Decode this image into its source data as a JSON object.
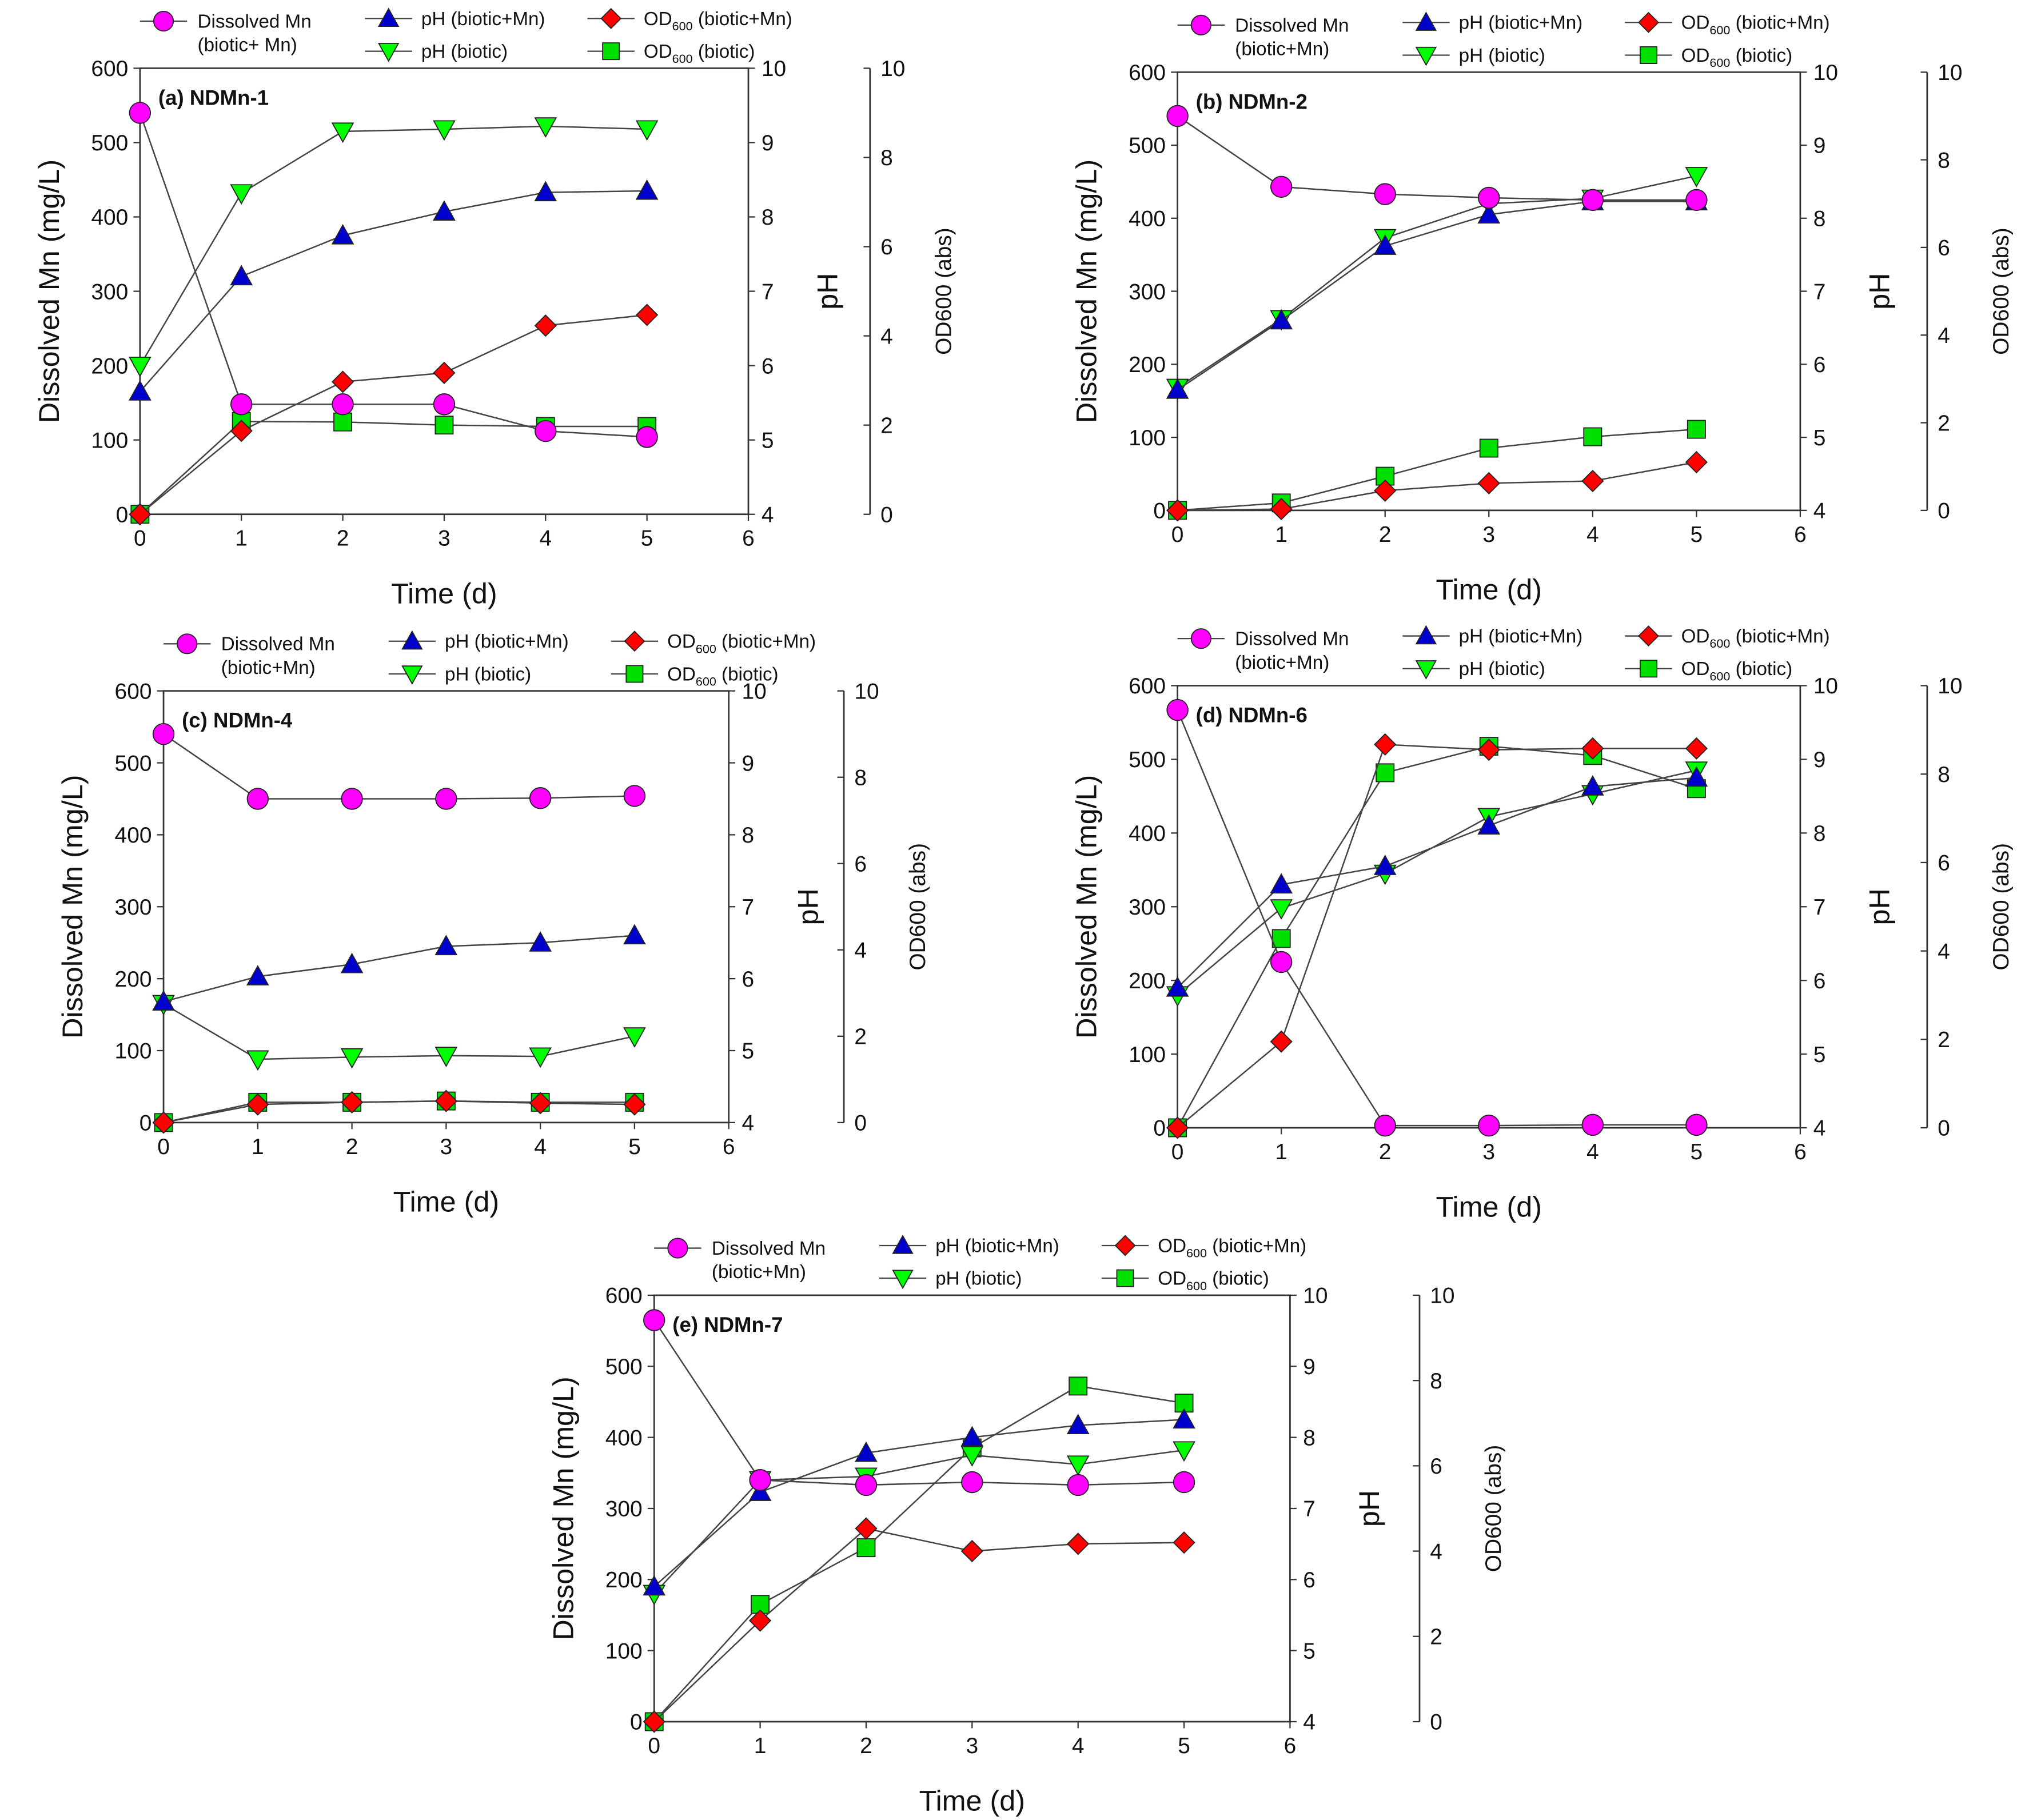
{
  "chart_data": {
    "type": "line",
    "shared": {
      "x": [
        0,
        1,
        2,
        3,
        4,
        5
      ],
      "xlim": [
        0,
        6
      ],
      "xticks": [
        0,
        1,
        2,
        3,
        4,
        5,
        6
      ],
      "xlabel": "Time (d)",
      "ylabel_left": "Dissolved Mn (mg/L)",
      "ylim_left": [
        0,
        600
      ],
      "yticks_left": [
        0,
        100,
        200,
        300,
        400,
        500,
        600
      ],
      "ylabel_right1": "pH",
      "ylim_right1": [
        4,
        10
      ],
      "yticks_right1": [
        4,
        5,
        6,
        7,
        8,
        9,
        10
      ],
      "ylabel_right2": "OD600 (abs)",
      "ylim_right2": [
        0,
        10
      ],
      "yticks_right2": [
        0,
        2,
        4,
        6,
        8,
        10
      ],
      "legend_placement": "top",
      "colors": {
        "mn": "#ff00ff",
        "ph_mn": "#0000cc",
        "ph": "#00ff00",
        "od_mn": "#ff0000",
        "od": "#00e000"
      }
    },
    "panels": [
      {
        "title": "(a) NDMn-1",
        "legend": {
          "mn_line1": "Dissolved Mn",
          "mn_line2": "(biotic+ Mn)",
          "ph_mn": "pH (biotic+Mn)",
          "ph": "pH (biotic)",
          "od_mn": "OD600 (biotic+Mn)",
          "od": "OD600 (biotic)"
        },
        "series": [
          {
            "key": "mn",
            "name": "Dissolved Mn (biotic+Mn)",
            "axis": "left",
            "values": [
              540,
              148,
              148,
              148,
              112,
              104
            ]
          },
          {
            "key": "ph_mn",
            "name": "pH (biotic+Mn)",
            "axis": "right1",
            "values": [
              5.65,
              7.2,
              7.75,
              8.07,
              8.33,
              8.35
            ]
          },
          {
            "key": "ph",
            "name": "pH (biotic)",
            "axis": "right1",
            "values": [
              6.0,
              8.32,
              9.15,
              9.18,
              9.22,
              9.18
            ]
          },
          {
            "key": "od_mn",
            "name": "OD600 (biotic+Mn)",
            "axis": "right2",
            "values": [
              0,
              1.87,
              2.97,
              3.17,
              4.23,
              4.47
            ]
          },
          {
            "key": "od",
            "name": "OD600 (biotic)",
            "axis": "right2",
            "values": [
              0,
              2.08,
              2.07,
              2.0,
              1.97,
              1.97
            ]
          }
        ]
      },
      {
        "title": "(b) NDMn-2",
        "legend": {
          "mn_line1": "Dissolved Mn",
          "mn_line2": "(biotic+Mn)",
          "ph_mn": "pH (biotic+Mn)",
          "ph": "pH (biotic)",
          "od_mn": "OD600 (biotic+Mn)",
          "od": "OD600 (biotic)"
        },
        "series": [
          {
            "key": "mn",
            "name": "Dissolved Mn (biotic+Mn)",
            "axis": "left",
            "values": [
              540,
              443,
              433,
              428,
              425,
              425
            ]
          },
          {
            "key": "ph_mn",
            "name": "pH (biotic+Mn)",
            "axis": "right1",
            "values": [
              5.65,
              6.6,
              7.62,
              8.05,
              8.23,
              8.23
            ]
          },
          {
            "key": "ph",
            "name": "pH (biotic)",
            "axis": "right1",
            "values": [
              5.68,
              6.62,
              7.73,
              8.2,
              8.27,
              8.58
            ]
          },
          {
            "key": "od_mn",
            "name": "OD600 (biotic+Mn)",
            "axis": "right2",
            "values": [
              0,
              0.03,
              0.45,
              0.62,
              0.67,
              1.1
            ]
          },
          {
            "key": "od",
            "name": "OD600 (biotic)",
            "axis": "right2",
            "values": [
              0,
              0.17,
              0.78,
              1.42,
              1.68,
              1.85
            ]
          }
        ]
      },
      {
        "title": "(c) NDMn-4",
        "legend": {
          "mn_line1": "Dissolved Mn",
          "mn_line2": "(biotic+Mn)",
          "ph_mn": "pH (biotic+Mn)",
          "ph": "pH (biotic)",
          "od_mn": "OD600 (biotic+Mn)",
          "od": "OD600 (biotic)"
        },
        "series": [
          {
            "key": "mn",
            "name": "Dissolved Mn (biotic+Mn)",
            "axis": "left",
            "values": [
              540,
              450,
              450,
              450,
              451,
              454
            ]
          },
          {
            "key": "ph_mn",
            "name": "pH (biotic+Mn)",
            "axis": "right1",
            "values": [
              5.68,
              6.03,
              6.2,
              6.45,
              6.5,
              6.6
            ]
          },
          {
            "key": "ph",
            "name": "pH (biotic)",
            "axis": "right1",
            "values": [
              5.65,
              4.88,
              4.91,
              4.93,
              4.92,
              5.2
            ]
          },
          {
            "key": "od_mn",
            "name": "OD600 (biotic+Mn)",
            "axis": "right2",
            "values": [
              0,
              0.42,
              0.47,
              0.5,
              0.45,
              0.42
            ]
          },
          {
            "key": "od",
            "name": "OD600 (biotic)",
            "axis": "right2",
            "values": [
              0,
              0.47,
              0.47,
              0.5,
              0.47,
              0.47
            ]
          }
        ]
      },
      {
        "title": "(d) NDMn-6",
        "legend": {
          "mn_line1": "Dissolved Mn",
          "mn_line2": "(biotic+Mn)",
          "ph_mn": "pH (biotic+Mn)",
          "ph": "pH (biotic)",
          "od_mn": "OD600 (biotic+Mn)",
          "od": "OD600 (biotic)"
        },
        "series": [
          {
            "key": "mn",
            "name": "Dissolved Mn (biotic+Mn)",
            "axis": "left",
            "values": [
              567,
              225,
              3,
              3,
              4,
              4
            ]
          },
          {
            "key": "ph_mn",
            "name": "pH (biotic+Mn)",
            "axis": "right1",
            "values": [
              5.9,
              7.3,
              7.55,
              8.1,
              8.63,
              8.75
            ]
          },
          {
            "key": "ph",
            "name": "pH (biotic)",
            "axis": "right1",
            "values": [
              5.8,
              6.98,
              7.45,
              8.22,
              8.53,
              8.85
            ]
          },
          {
            "key": "od_mn",
            "name": "OD600 (biotic+Mn)",
            "axis": "right2",
            "values": [
              0,
              1.95,
              8.67,
              8.55,
              8.58,
              8.58
            ]
          },
          {
            "key": "od",
            "name": "OD600 (biotic)",
            "axis": "right2",
            "values": [
              0,
              4.28,
              8.03,
              8.63,
              8.42,
              7.67
            ]
          }
        ]
      },
      {
        "title": "(e) NDMn-7",
        "legend": {
          "mn_line1": "Dissolved Mn",
          "mn_line2": "(biotic+Mn)",
          "ph_mn": "pH (biotic+Mn)",
          "ph": "pH (biotic)",
          "od_mn": "OD600 (biotic+Mn)",
          "od": "OD600 (biotic)"
        },
        "series": [
          {
            "key": "mn",
            "name": "Dissolved Mn (biotic+Mn)",
            "axis": "left",
            "values": [
              565,
              340,
              333,
              337,
              333,
              337
            ]
          },
          {
            "key": "ph_mn",
            "name": "pH (biotic+Mn)",
            "axis": "right1",
            "values": [
              5.9,
              7.23,
              7.78,
              8.0,
              8.17,
              8.25
            ]
          },
          {
            "key": "ph",
            "name": "pH (biotic)",
            "axis": "right1",
            "values": [
              5.8,
              7.4,
              7.45,
              7.75,
              7.62,
              7.82
            ]
          },
          {
            "key": "od_mn",
            "name": "OD600 (biotic+Mn)",
            "axis": "right2",
            "values": [
              0,
              2.37,
              4.53,
              4.0,
              4.17,
              4.2
            ]
          },
          {
            "key": "od",
            "name": "OD600 (biotic)",
            "axis": "right2",
            "values": [
              0,
              2.75,
              4.08,
              6.42,
              7.87,
              7.47
            ]
          }
        ]
      }
    ]
  }
}
